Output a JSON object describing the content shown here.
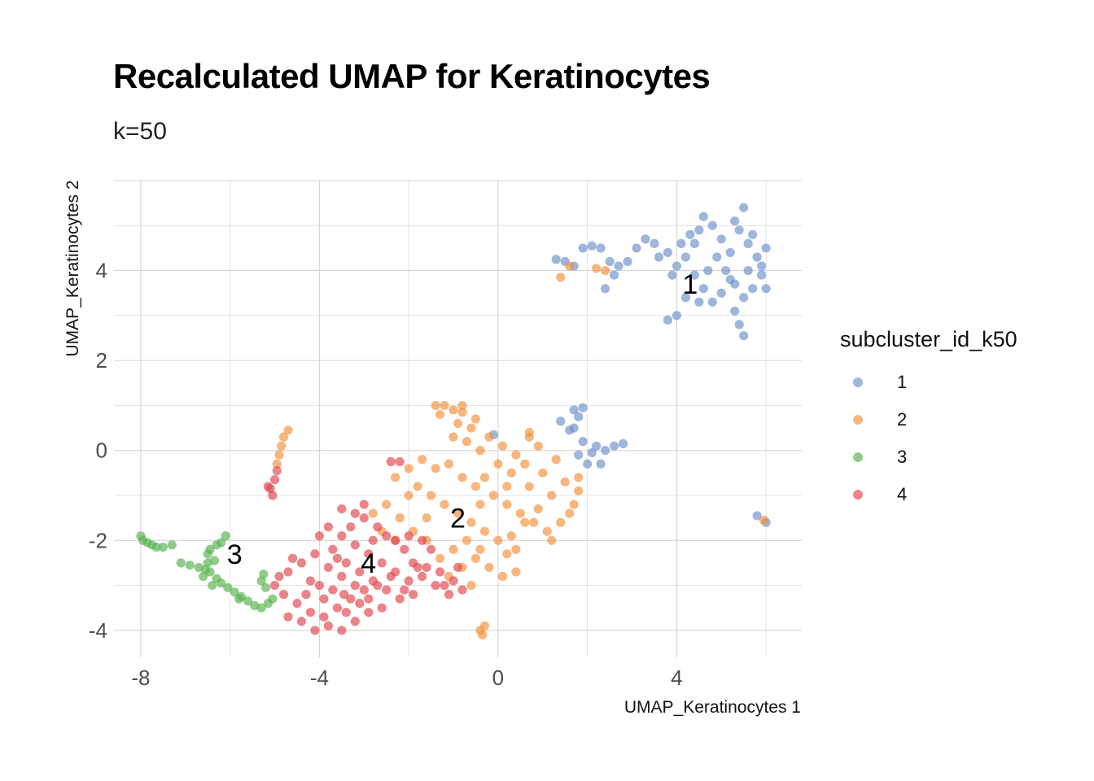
{
  "chart_data": {
    "type": "scatter",
    "title": "Recalculated UMAP for Keratinocytes",
    "subtitle": "k=50",
    "xlabel": "UMAP_Keratinocytes 1",
    "ylabel": "UMAP_Keratinocytes 2",
    "xlim": [
      -8.6,
      6.8
    ],
    "ylim": [
      -4.6,
      6.0
    ],
    "x_ticks": [
      -8,
      -4,
      0,
      4
    ],
    "x_tick_labels": [
      "-8",
      "-4",
      "0",
      "4"
    ],
    "y_ticks": [
      -4,
      -2,
      0,
      2,
      4
    ],
    "y_tick_labels": [
      "-4",
      "-2",
      "0",
      "2",
      "4"
    ],
    "grid": true,
    "legend": {
      "title": "subcluster_id_k50",
      "position": "right",
      "entries": [
        {
          "label": "1",
          "color": "#6a8fc9"
        },
        {
          "label": "2",
          "color": "#f58f3a"
        },
        {
          "label": "3",
          "color": "#55b04a"
        },
        {
          "label": "4",
          "color": "#e0424a"
        }
      ]
    },
    "cluster_labels": [
      {
        "label": "1",
        "x": 4.3,
        "y": 3.7
      },
      {
        "label": "2",
        "x": -0.9,
        "y": -1.5
      },
      {
        "label": "3",
        "x": -5.9,
        "y": -2.3
      },
      {
        "label": "4",
        "x": -2.9,
        "y": -2.5
      }
    ],
    "series": [
      {
        "name": "1",
        "color": "#6a8fc9",
        "points": [
          [
            1.3,
            4.25
          ],
          [
            1.5,
            4.2
          ],
          [
            1.7,
            4.1
          ],
          [
            1.9,
            4.5
          ],
          [
            2.1,
            4.55
          ],
          [
            2.3,
            4.5
          ],
          [
            2.5,
            4.2
          ],
          [
            2.6,
            3.9
          ],
          [
            2.4,
            3.6
          ],
          [
            2.7,
            4.1
          ],
          [
            2.9,
            4.2
          ],
          [
            3.1,
            4.5
          ],
          [
            3.3,
            4.7
          ],
          [
            3.5,
            4.6
          ],
          [
            3.6,
            4.3
          ],
          [
            3.8,
            4.4
          ],
          [
            4.0,
            4.1
          ],
          [
            4.2,
            4.3
          ],
          [
            4.4,
            4.6
          ],
          [
            4.5,
            4.9
          ],
          [
            4.6,
            5.2
          ],
          [
            4.8,
            5.0
          ],
          [
            5.0,
            4.7
          ],
          [
            5.2,
            4.4
          ],
          [
            5.3,
            5.1
          ],
          [
            5.5,
            5.4
          ],
          [
            5.4,
            4.9
          ],
          [
            5.6,
            4.6
          ],
          [
            5.8,
            4.3
          ],
          [
            6.0,
            4.5
          ],
          [
            5.9,
            3.9
          ],
          [
            5.7,
            3.6
          ],
          [
            5.5,
            3.4
          ],
          [
            5.3,
            3.1
          ],
          [
            5.4,
            2.8
          ],
          [
            5.5,
            2.55
          ],
          [
            5.2,
            3.8
          ],
          [
            5.0,
            3.5
          ],
          [
            4.8,
            3.3
          ],
          [
            4.6,
            3.6
          ],
          [
            4.4,
            3.9
          ],
          [
            4.2,
            3.4
          ],
          [
            4.0,
            3.0
          ],
          [
            3.8,
            2.9
          ],
          [
            4.7,
            4.0
          ],
          [
            4.9,
            4.3
          ],
          [
            5.1,
            4.0
          ],
          [
            5.3,
            3.7
          ],
          [
            5.7,
            4.8
          ],
          [
            5.9,
            4.1
          ],
          [
            6.0,
            3.6
          ],
          [
            5.6,
            4.0
          ],
          [
            4.3,
            4.8
          ],
          [
            4.1,
            4.6
          ],
          [
            3.9,
            3.9
          ],
          [
            4.5,
            3.3
          ],
          [
            1.7,
            0.9
          ],
          [
            1.8,
            0.75
          ],
          [
            1.9,
            0.95
          ],
          [
            1.4,
            0.65
          ],
          [
            1.7,
            0.5
          ],
          [
            1.9,
            0.2
          ],
          [
            2.2,
            0.1
          ],
          [
            2.4,
            0.0
          ],
          [
            2.6,
            0.1
          ],
          [
            2.8,
            0.15
          ],
          [
            1.8,
            -0.1
          ],
          [
            2.0,
            -0.3
          ],
          [
            2.3,
            -0.3
          ],
          [
            5.8,
            -1.45
          ],
          [
            6.0,
            -1.6
          ],
          [
            -0.1,
            0.35
          ],
          [
            1.6,
            0.45
          ],
          [
            2.1,
            -0.05
          ]
        ]
      },
      {
        "name": "2",
        "color": "#f58f3a",
        "points": [
          [
            1.4,
            3.85
          ],
          [
            1.6,
            4.1
          ],
          [
            2.2,
            4.05
          ],
          [
            2.4,
            4.0
          ],
          [
            -1.4,
            1.0
          ],
          [
            -1.2,
            1.0
          ],
          [
            -1.0,
            0.9
          ],
          [
            -0.8,
            0.85
          ],
          [
            -1.3,
            0.8
          ],
          [
            -0.9,
            0.6
          ],
          [
            -0.6,
            0.5
          ],
          [
            -0.7,
            0.2
          ],
          [
            -1.0,
            0.3
          ],
          [
            -0.5,
            0.7
          ],
          [
            -0.8,
            1.0
          ],
          [
            -0.2,
            0.3
          ],
          [
            0.1,
            0.1
          ],
          [
            0.4,
            -0.1
          ],
          [
            0.7,
            0.3
          ],
          [
            0.9,
            0.1
          ],
          [
            0.6,
            -0.3
          ],
          [
            0.3,
            -0.5
          ],
          [
            0.0,
            -0.3
          ],
          [
            -0.3,
            -0.6
          ],
          [
            -0.5,
            -0.8
          ],
          [
            -0.8,
            -0.6
          ],
          [
            -1.1,
            -0.3
          ],
          [
            -1.4,
            -0.4
          ],
          [
            -1.7,
            -0.2
          ],
          [
            -2.0,
            -0.4
          ],
          [
            -2.3,
            -0.6
          ],
          [
            -1.8,
            -0.8
          ],
          [
            -1.5,
            -1.0
          ],
          [
            -1.2,
            -1.2
          ],
          [
            -0.9,
            -1.4
          ],
          [
            -0.6,
            -1.6
          ],
          [
            -0.3,
            -1.8
          ],
          [
            0.0,
            -2.0
          ],
          [
            0.3,
            -1.9
          ],
          [
            0.6,
            -1.6
          ],
          [
            0.9,
            -1.3
          ],
          [
            1.2,
            -1.0
          ],
          [
            1.5,
            -0.7
          ],
          [
            1.8,
            -0.9
          ],
          [
            1.7,
            -1.2
          ],
          [
            1.4,
            -1.6
          ],
          [
            1.1,
            -1.8
          ],
          [
            0.8,
            -1.6
          ],
          [
            0.5,
            -1.4
          ],
          [
            0.2,
            -1.2
          ],
          [
            -0.1,
            -1.0
          ],
          [
            -0.4,
            -1.2
          ],
          [
            -0.7,
            -2.0
          ],
          [
            -1.0,
            -2.2
          ],
          [
            -1.3,
            -2.4
          ],
          [
            -1.6,
            -2.0
          ],
          [
            -1.9,
            -1.8
          ],
          [
            -2.2,
            -1.5
          ],
          [
            -2.5,
            -1.2
          ],
          [
            -2.8,
            -1.4
          ],
          [
            -2.6,
            -1.8
          ],
          [
            -2.3,
            -2.0
          ],
          [
            -0.5,
            -2.4
          ],
          [
            -0.2,
            -2.6
          ],
          [
            0.1,
            -2.8
          ],
          [
            0.4,
            -2.7
          ],
          [
            0.2,
            -2.3
          ],
          [
            -0.4,
            -2.2
          ],
          [
            -0.8,
            -2.6
          ],
          [
            -1.1,
            -2.8
          ],
          [
            -0.6,
            -3.0
          ],
          [
            -0.4,
            -4.0
          ],
          [
            -0.3,
            -3.9
          ],
          [
            -0.35,
            -4.1
          ],
          [
            -4.7,
            0.45
          ],
          [
            -4.8,
            0.3
          ],
          [
            -4.85,
            0.1
          ],
          [
            -4.9,
            -0.1
          ],
          [
            -4.95,
            -0.3
          ],
          [
            1.0,
            -0.5
          ],
          [
            0.7,
            -0.8
          ],
          [
            1.3,
            -0.2
          ],
          [
            0.2,
            -0.8
          ],
          [
            -0.4,
            0.0
          ],
          [
            -1.6,
            -1.5
          ],
          [
            -2.0,
            -1.0
          ],
          [
            0.4,
            -2.2
          ],
          [
            1.2,
            -2.0
          ],
          [
            1.6,
            -1.4
          ],
          [
            1.8,
            -0.6
          ],
          [
            5.95,
            -1.55
          ],
          [
            0.7,
            0.4
          ]
        ]
      },
      {
        "name": "3",
        "color": "#55b04a",
        "points": [
          [
            -8.0,
            -1.9
          ],
          [
            -7.95,
            -2.0
          ],
          [
            -7.85,
            -2.05
          ],
          [
            -7.75,
            -2.1
          ],
          [
            -7.65,
            -2.15
          ],
          [
            -7.5,
            -2.15
          ],
          [
            -7.3,
            -2.1
          ],
          [
            -7.1,
            -2.5
          ],
          [
            -6.9,
            -2.55
          ],
          [
            -6.7,
            -2.6
          ],
          [
            -6.5,
            -2.5
          ],
          [
            -6.45,
            -2.7
          ],
          [
            -6.3,
            -2.85
          ],
          [
            -6.2,
            -2.95
          ],
          [
            -6.05,
            -3.05
          ],
          [
            -5.9,
            -3.15
          ],
          [
            -5.75,
            -3.25
          ],
          [
            -5.6,
            -3.35
          ],
          [
            -5.45,
            -3.45
          ],
          [
            -5.3,
            -3.5
          ],
          [
            -5.15,
            -3.4
          ],
          [
            -5.05,
            -3.3
          ],
          [
            -5.2,
            -3.05
          ],
          [
            -5.3,
            -2.9
          ],
          [
            -5.25,
            -2.75
          ],
          [
            -6.1,
            -1.9
          ],
          [
            -6.2,
            -2.05
          ],
          [
            -6.3,
            -2.1
          ],
          [
            -6.45,
            -2.2
          ],
          [
            -6.5,
            -2.3
          ],
          [
            -6.35,
            -2.45
          ],
          [
            -6.55,
            -2.65
          ],
          [
            -6.6,
            -2.8
          ],
          [
            -6.4,
            -3.0
          ],
          [
            -5.8,
            -3.3
          ]
        ]
      },
      {
        "name": "4",
        "color": "#e0424a",
        "points": [
          [
            -5.1,
            -0.85
          ],
          [
            -5.0,
            -0.65
          ],
          [
            -4.95,
            -0.45
          ],
          [
            -5.05,
            -1.0
          ],
          [
            -5.15,
            -0.8
          ],
          [
            -2.4,
            -0.25
          ],
          [
            -2.2,
            -0.25
          ],
          [
            -3.5,
            -1.3
          ],
          [
            -3.2,
            -1.4
          ],
          [
            -3.0,
            -1.5
          ],
          [
            -2.7,
            -1.7
          ],
          [
            -2.5,
            -1.9
          ],
          [
            -2.3,
            -2.0
          ],
          [
            -2.1,
            -2.2
          ],
          [
            -1.9,
            -2.5
          ],
          [
            -1.6,
            -2.6
          ],
          [
            -1.3,
            -2.7
          ],
          [
            -1.0,
            -2.9
          ],
          [
            -0.8,
            -3.1
          ],
          [
            -1.1,
            -3.2
          ],
          [
            -1.4,
            -3.0
          ],
          [
            -1.7,
            -2.8
          ],
          [
            -2.0,
            -2.9
          ],
          [
            -2.3,
            -2.7
          ],
          [
            -2.6,
            -2.5
          ],
          [
            -2.9,
            -2.3
          ],
          [
            -3.2,
            -2.1
          ],
          [
            -3.5,
            -1.9
          ],
          [
            -3.8,
            -1.7
          ],
          [
            -4.0,
            -1.9
          ],
          [
            -3.7,
            -2.2
          ],
          [
            -3.4,
            -2.5
          ],
          [
            -3.1,
            -2.7
          ],
          [
            -2.8,
            -2.9
          ],
          [
            -2.5,
            -3.1
          ],
          [
            -2.2,
            -3.3
          ],
          [
            -1.9,
            -3.2
          ],
          [
            -3.0,
            -3.1
          ],
          [
            -3.3,
            -3.3
          ],
          [
            -3.6,
            -3.5
          ],
          [
            -3.9,
            -3.7
          ],
          [
            -4.2,
            -3.6
          ],
          [
            -4.5,
            -3.4
          ],
          [
            -4.8,
            -3.2
          ],
          [
            -5.0,
            -3.0
          ],
          [
            -4.7,
            -2.7
          ],
          [
            -4.4,
            -2.5
          ],
          [
            -4.1,
            -2.3
          ],
          [
            -3.8,
            -2.6
          ],
          [
            -3.5,
            -2.8
          ],
          [
            -3.2,
            -3.0
          ],
          [
            -2.9,
            -3.3
          ],
          [
            -2.6,
            -3.5
          ],
          [
            -2.9,
            -3.6
          ],
          [
            -3.2,
            -3.8
          ],
          [
            -3.5,
            -4.0
          ],
          [
            -3.8,
            -3.9
          ],
          [
            -4.1,
            -4.0
          ],
          [
            -4.4,
            -3.8
          ],
          [
            -4.7,
            -3.7
          ],
          [
            -4.3,
            -3.2
          ],
          [
            -4.0,
            -3.0
          ],
          [
            -3.7,
            -3.1
          ],
          [
            -3.4,
            -3.6
          ],
          [
            -3.1,
            -3.4
          ],
          [
            -2.7,
            -3.0
          ],
          [
            -2.4,
            -2.8
          ],
          [
            -2.1,
            -3.1
          ],
          [
            -1.8,
            -2.6
          ],
          [
            -1.5,
            -2.2
          ],
          [
            -1.2,
            -3.0
          ],
          [
            -0.9,
            -2.6
          ],
          [
            -4.6,
            -2.4
          ],
          [
            -4.9,
            -2.8
          ],
          [
            -3.0,
            -1.2
          ],
          [
            -2.8,
            -2.0
          ],
          [
            -3.3,
            -1.7
          ],
          [
            -3.6,
            -2.4
          ],
          [
            -2.0,
            -1.9
          ],
          [
            -1.7,
            -2.0
          ],
          [
            -3.9,
            -3.3
          ],
          [
            -4.2,
            -2.9
          ],
          [
            -3.45,
            -3.2
          ]
        ]
      }
    ]
  }
}
